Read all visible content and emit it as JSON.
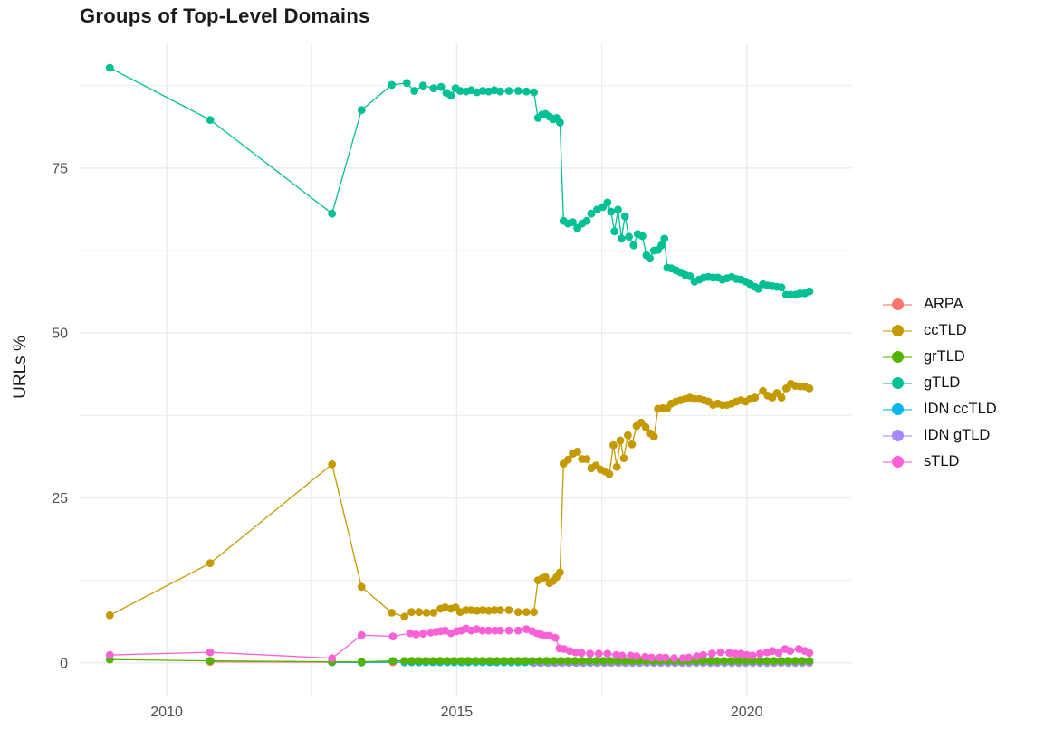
{
  "page": {
    "title": "Groups of Top-Level Domains",
    "y_axis_title": "URLs %"
  },
  "chart_data": {
    "type": "line",
    "title": "Groups of Top-Level Domains",
    "xlabel": "",
    "ylabel": "URLs %",
    "legend_position": "right",
    "grid": true,
    "background": "#ffffff",
    "grid_color": "#ececec",
    "xlim": [
      2008.5,
      2021.8
    ],
    "ylim": [
      -5.1,
      93.9
    ],
    "x_ticks": [
      2010,
      2015,
      2020
    ],
    "y_ticks": [
      0,
      25,
      50,
      75
    ],
    "x_minor_ticks": [
      2012.5,
      2017.5
    ],
    "y_minor_ticks": [
      12.5,
      37.5,
      62.5,
      87.5
    ],
    "draw_order": [
      "ARPA",
      "IDN ccTLD",
      "IDN gTLD",
      "grTLD",
      "ccTLD",
      "gTLD",
      "sTLD"
    ],
    "series": [
      {
        "name": "ARPA",
        "color": "#F8766D",
        "points": [
          [
            2010.75,
            0.15
          ],
          [
            2012.85,
            0.1
          ],
          [
            2013.36,
            0.1
          ],
          [
            2013.9,
            0.1
          ]
        ]
      },
      {
        "name": "ccTLD",
        "color": "#C49A00",
        "points": [
          [
            2009.02,
            7.2
          ],
          [
            2010.75,
            15.1
          ],
          [
            2012.85,
            30.1
          ],
          [
            2013.36,
            11.5
          ],
          [
            2013.88,
            7.6
          ],
          [
            2014.1,
            7.0
          ],
          [
            2014.22,
            7.7
          ],
          [
            2014.35,
            7.7
          ],
          [
            2014.48,
            7.6
          ],
          [
            2014.6,
            7.6
          ],
          [
            2014.72,
            8.2
          ],
          [
            2014.8,
            8.4
          ],
          [
            2014.9,
            8.2
          ],
          [
            2014.98,
            8.4
          ],
          [
            2015.06,
            7.7
          ],
          [
            2015.16,
            8.0
          ],
          [
            2015.25,
            8.0
          ],
          [
            2015.35,
            7.9
          ],
          [
            2015.45,
            8.0
          ],
          [
            2015.55,
            7.9
          ],
          [
            2015.65,
            8.0
          ],
          [
            2015.75,
            8.0
          ],
          [
            2015.9,
            8.0
          ],
          [
            2016.06,
            7.7
          ],
          [
            2016.2,
            7.7
          ],
          [
            2016.33,
            7.7
          ],
          [
            2016.4,
            12.5
          ],
          [
            2016.47,
            12.8
          ],
          [
            2016.53,
            13.0
          ],
          [
            2016.6,
            12.1
          ],
          [
            2016.66,
            12.4
          ],
          [
            2016.72,
            13.0
          ],
          [
            2016.78,
            13.7
          ],
          [
            2016.84,
            30.2
          ],
          [
            2016.92,
            30.8
          ],
          [
            2017.0,
            31.7
          ],
          [
            2017.08,
            32.0
          ],
          [
            2017.16,
            30.9
          ],
          [
            2017.24,
            30.9
          ],
          [
            2017.32,
            29.5
          ],
          [
            2017.4,
            29.9
          ],
          [
            2017.48,
            29.3
          ],
          [
            2017.56,
            29.0
          ],
          [
            2017.63,
            28.6
          ],
          [
            2017.7,
            33.0
          ],
          [
            2017.76,
            29.7
          ],
          [
            2017.82,
            33.7
          ],
          [
            2017.88,
            31.0
          ],
          [
            2017.95,
            34.5
          ],
          [
            2018.02,
            33.1
          ],
          [
            2018.1,
            35.9
          ],
          [
            2018.18,
            36.4
          ],
          [
            2018.26,
            35.7
          ],
          [
            2018.33,
            34.8
          ],
          [
            2018.4,
            34.3
          ],
          [
            2018.47,
            38.5
          ],
          [
            2018.55,
            38.6
          ],
          [
            2018.63,
            38.6
          ],
          [
            2018.7,
            39.3
          ],
          [
            2018.78,
            39.6
          ],
          [
            2018.86,
            39.8
          ],
          [
            2018.94,
            40.0
          ],
          [
            2019.02,
            40.2
          ],
          [
            2019.1,
            40.0
          ],
          [
            2019.18,
            40.0
          ],
          [
            2019.26,
            39.8
          ],
          [
            2019.34,
            39.6
          ],
          [
            2019.42,
            39.1
          ],
          [
            2019.5,
            39.3
          ],
          [
            2019.58,
            39.1
          ],
          [
            2019.66,
            39.1
          ],
          [
            2019.74,
            39.3
          ],
          [
            2019.82,
            39.6
          ],
          [
            2019.9,
            39.8
          ],
          [
            2019.98,
            39.6
          ],
          [
            2020.06,
            40.0
          ],
          [
            2020.14,
            40.2
          ],
          [
            2020.28,
            41.2
          ],
          [
            2020.36,
            40.5
          ],
          [
            2020.44,
            40.2
          ],
          [
            2020.52,
            40.9
          ],
          [
            2020.6,
            40.2
          ],
          [
            2020.68,
            41.6
          ],
          [
            2020.76,
            42.3
          ],
          [
            2020.84,
            42.0
          ],
          [
            2020.92,
            41.9
          ],
          [
            2021.0,
            41.9
          ],
          [
            2021.08,
            41.6
          ]
        ]
      },
      {
        "name": "grTLD",
        "color": "#53B400",
        "points": [
          [
            2009.02,
            0.5
          ],
          [
            2010.75,
            0.3
          ],
          [
            2012.85,
            0.15
          ],
          [
            2013.36,
            0.15
          ],
          [
            2013.9,
            0.3
          ],
          {
            "a": 2014.1,
            "b": 2021.08,
            "n": 58,
            "y": 0.3
          }
        ]
      },
      {
        "name": "gTLD",
        "color": "#00C094",
        "points": [
          [
            2009.02,
            90.2
          ],
          [
            2010.75,
            82.3
          ],
          [
            2012.85,
            68.1
          ],
          [
            2013.36,
            83.8
          ],
          [
            2013.88,
            87.6
          ],
          [
            2014.14,
            87.9
          ],
          [
            2014.27,
            86.7
          ],
          [
            2014.42,
            87.5
          ],
          [
            2014.6,
            87.1
          ],
          [
            2014.73,
            87.3
          ],
          [
            2014.82,
            86.4
          ],
          [
            2014.9,
            86.0
          ],
          [
            2014.98,
            87.1
          ],
          [
            2015.06,
            86.7
          ],
          [
            2015.16,
            86.6
          ],
          [
            2015.25,
            86.8
          ],
          [
            2015.35,
            86.5
          ],
          [
            2015.45,
            86.7
          ],
          [
            2015.55,
            86.6
          ],
          [
            2015.65,
            86.8
          ],
          [
            2015.75,
            86.6
          ],
          [
            2015.9,
            86.7
          ],
          [
            2016.06,
            86.7
          ],
          [
            2016.2,
            86.6
          ],
          [
            2016.33,
            86.5
          ],
          [
            2016.4,
            82.6
          ],
          [
            2016.47,
            83.1
          ],
          [
            2016.53,
            83.2
          ],
          [
            2016.6,
            82.8
          ],
          [
            2016.66,
            82.4
          ],
          [
            2016.72,
            82.6
          ],
          [
            2016.78,
            81.9
          ],
          [
            2016.84,
            67.0
          ],
          [
            2016.92,
            66.6
          ],
          [
            2017.0,
            66.8
          ],
          [
            2017.08,
            65.9
          ],
          [
            2017.16,
            66.6
          ],
          [
            2017.24,
            67.0
          ],
          [
            2017.32,
            68.1
          ],
          [
            2017.42,
            68.7
          ],
          [
            2017.52,
            69.1
          ],
          [
            2017.6,
            69.8
          ],
          [
            2017.66,
            68.4
          ],
          [
            2017.72,
            65.4
          ],
          [
            2017.78,
            68.7
          ],
          [
            2017.84,
            64.3
          ],
          [
            2017.9,
            67.7
          ],
          [
            2017.97,
            64.6
          ],
          [
            2018.05,
            63.3
          ],
          [
            2018.12,
            65.0
          ],
          [
            2018.2,
            64.7
          ],
          [
            2018.27,
            61.8
          ],
          [
            2018.33,
            61.3
          ],
          [
            2018.4,
            62.5
          ],
          [
            2018.47,
            62.6
          ],
          [
            2018.53,
            63.3
          ],
          [
            2018.58,
            64.3
          ],
          [
            2018.63,
            59.9
          ],
          [
            2018.7,
            59.8
          ],
          [
            2018.78,
            59.5
          ],
          [
            2018.86,
            59.2
          ],
          [
            2018.94,
            58.8
          ],
          [
            2019.02,
            58.6
          ],
          [
            2019.1,
            57.8
          ],
          [
            2019.18,
            58.1
          ],
          [
            2019.26,
            58.4
          ],
          [
            2019.34,
            58.5
          ],
          [
            2019.42,
            58.4
          ],
          [
            2019.5,
            58.4
          ],
          [
            2019.58,
            58.1
          ],
          [
            2019.66,
            58.3
          ],
          [
            2019.74,
            58.5
          ],
          [
            2019.82,
            58.2
          ],
          [
            2019.9,
            58.1
          ],
          [
            2019.98,
            57.8
          ],
          [
            2020.06,
            57.4
          ],
          [
            2020.14,
            57.0
          ],
          [
            2020.2,
            56.7
          ],
          [
            2020.28,
            57.4
          ],
          [
            2020.36,
            57.2
          ],
          [
            2020.44,
            57.1
          ],
          [
            2020.52,
            57.0
          ],
          [
            2020.6,
            56.9
          ],
          [
            2020.68,
            55.8
          ],
          [
            2020.76,
            55.8
          ],
          [
            2020.84,
            55.8
          ],
          [
            2020.92,
            56.0
          ],
          [
            2021.0,
            56.0
          ],
          [
            2021.08,
            56.3
          ]
        ]
      },
      {
        "name": "IDN ccTLD",
        "color": "#00B6EB",
        "points": [
          [
            2012.85,
            0.1
          ],
          [
            2013.36,
            0.05
          ],
          {
            "a": 2014.1,
            "b": 2021.08,
            "n": 58,
            "y": 0.1
          }
        ]
      },
      {
        "name": "IDN gTLD",
        "color": "#A58AFF",
        "points": [
          {
            "a": 2016.33,
            "b": 2021.08,
            "n": 40,
            "y": 0.0
          }
        ]
      },
      {
        "name": "sTLD",
        "color": "#FB61D7",
        "points": [
          [
            2009.02,
            1.2
          ],
          [
            2010.75,
            1.6
          ],
          [
            2012.85,
            0.7
          ],
          [
            2013.36,
            4.2
          ],
          [
            2013.9,
            4.0
          ],
          [
            2014.2,
            4.5
          ],
          [
            2014.3,
            4.3
          ],
          [
            2014.42,
            4.4
          ],
          [
            2014.55,
            4.6
          ],
          [
            2014.64,
            4.7
          ],
          [
            2014.72,
            4.8
          ],
          [
            2014.8,
            4.9
          ],
          [
            2014.9,
            4.5
          ],
          [
            2015.0,
            4.8
          ],
          [
            2015.08,
            4.9
          ],
          [
            2015.16,
            5.2
          ],
          [
            2015.25,
            4.9
          ],
          [
            2015.34,
            5.1
          ],
          [
            2015.44,
            4.9
          ],
          [
            2015.55,
            4.9
          ],
          [
            2015.66,
            4.9
          ],
          [
            2015.75,
            4.9
          ],
          [
            2015.9,
            4.9
          ],
          [
            2016.06,
            4.9
          ],
          [
            2016.2,
            5.1
          ],
          [
            2016.3,
            4.8
          ],
          [
            2016.38,
            4.5
          ],
          [
            2016.45,
            4.3
          ],
          [
            2016.53,
            4.1
          ],
          [
            2016.6,
            4.1
          ],
          [
            2016.7,
            3.8
          ],
          [
            2016.77,
            2.2
          ],
          [
            2016.85,
            2.1
          ],
          [
            2016.95,
            1.8
          ],
          [
            2017.05,
            1.6
          ],
          [
            2017.15,
            1.5
          ],
          [
            2017.3,
            1.4
          ],
          [
            2017.45,
            1.4
          ],
          [
            2017.6,
            1.4
          ],
          [
            2017.75,
            1.2
          ],
          [
            2017.85,
            1.1
          ],
          [
            2018.0,
            1.1
          ],
          [
            2018.1,
            1.0
          ],
          [
            2018.25,
            0.9
          ],
          [
            2018.36,
            0.8
          ],
          [
            2018.5,
            0.8
          ],
          [
            2018.6,
            0.8
          ],
          [
            2018.75,
            0.7
          ],
          [
            2018.9,
            0.7
          ],
          [
            2019.0,
            0.8
          ],
          [
            2019.14,
            1.0
          ],
          [
            2019.25,
            1.2
          ],
          [
            2019.4,
            1.4
          ],
          [
            2019.55,
            1.6
          ],
          [
            2019.7,
            1.5
          ],
          [
            2019.8,
            1.4
          ],
          [
            2019.9,
            1.4
          ],
          [
            2020.0,
            1.2
          ],
          [
            2020.1,
            1.1
          ],
          [
            2020.23,
            1.4
          ],
          [
            2020.35,
            1.6
          ],
          [
            2020.44,
            1.8
          ],
          [
            2020.55,
            1.5
          ],
          [
            2020.66,
            2.1
          ],
          [
            2020.75,
            1.8
          ],
          [
            2020.9,
            2.1
          ],
          [
            2021.0,
            1.8
          ],
          [
            2021.08,
            1.5
          ]
        ]
      }
    ]
  }
}
